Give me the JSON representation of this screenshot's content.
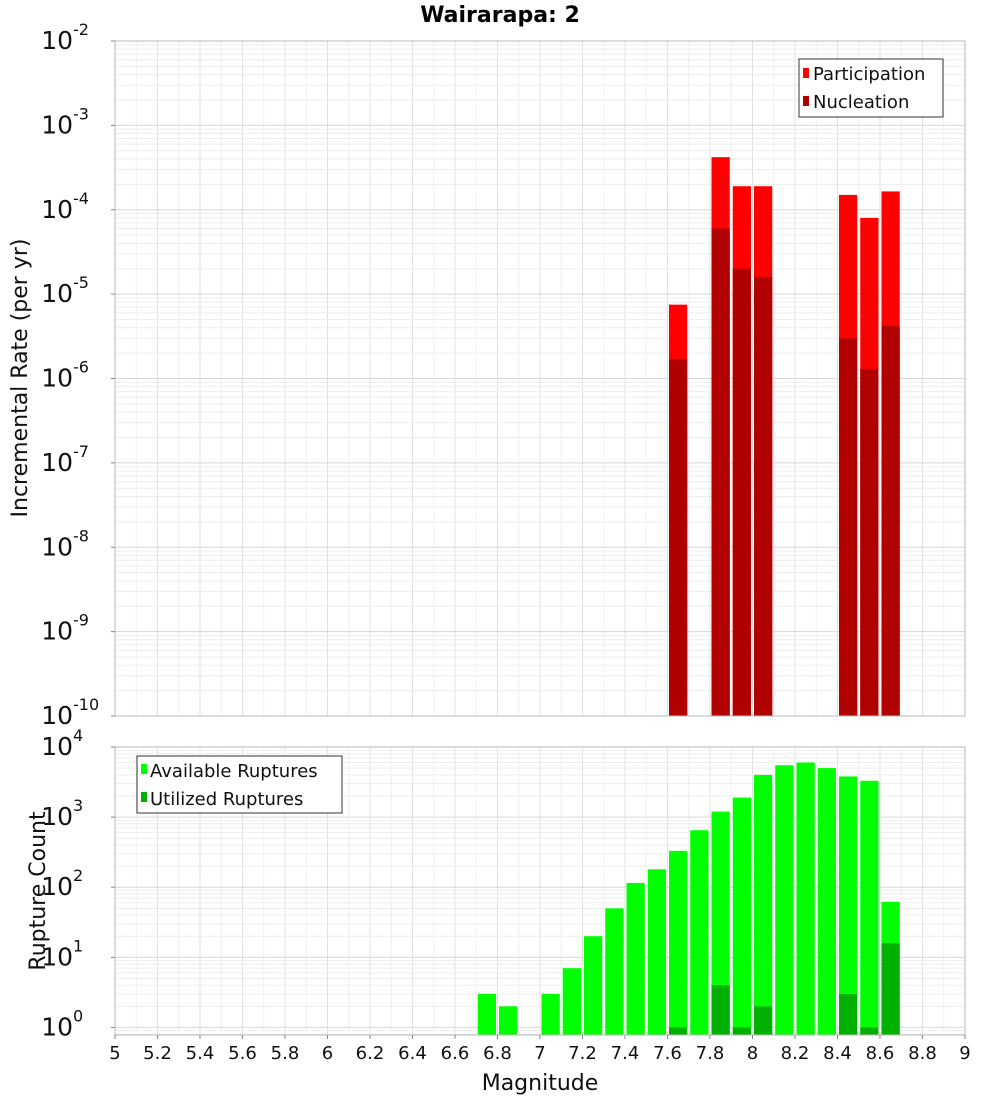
{
  "chart_data": [
    {
      "type": "bar",
      "title": "Wairarapa: 2",
      "xlabel": "",
      "ylabel": "Incremental Rate (per yr)",
      "yscale": "log",
      "ylim": [
        1e-10,
        0.01
      ],
      "xlim": [
        5,
        9
      ],
      "bin_width": 0.1,
      "x": [
        7.65,
        7.85,
        7.95,
        8.05,
        8.45,
        8.55,
        8.65
      ],
      "series": [
        {
          "name": "Participation",
          "color": "#ff0000",
          "values": [
            7.5e-06,
            0.00042,
            0.00019,
            0.00019,
            0.00015,
            8e-05,
            0.000165
          ]
        },
        {
          "name": "Nucleation",
          "color": "#b00000",
          "values": [
            1.7e-06,
            6e-05,
            2e-05,
            1.6e-05,
            3e-06,
            1.3e-06,
            4.2e-06
          ]
        }
      ],
      "y_tick_labels": [
        {
          "base": "10",
          "exp": "-2",
          "value": 0.01
        },
        {
          "base": "10",
          "exp": "-3",
          "value": 0.001
        },
        {
          "base": "10",
          "exp": "-4",
          "value": 0.0001
        },
        {
          "base": "10",
          "exp": "-5",
          "value": 1e-05
        },
        {
          "base": "10",
          "exp": "-6",
          "value": 1e-06
        },
        {
          "base": "10",
          "exp": "-7",
          "value": 1e-07
        },
        {
          "base": "10",
          "exp": "-8",
          "value": 1e-08
        },
        {
          "base": "10",
          "exp": "-9",
          "value": 1e-09
        },
        {
          "base": "10",
          "exp": "-10",
          "value": 1e-10
        }
      ],
      "legend": [
        "Participation",
        "Nucleation"
      ],
      "legend_position": "top-right",
      "grid": true
    },
    {
      "type": "bar",
      "title": "",
      "xlabel": "Magnitude",
      "ylabel": "Rupture Count",
      "yscale": "log",
      "ylim": [
        0.78,
        10000
      ],
      "xlim": [
        5,
        9
      ],
      "bin_width": 0.1,
      "x": [
        6.75,
        6.85,
        6.95,
        7.05,
        7.15,
        7.25,
        7.35,
        7.45,
        7.55,
        7.65,
        7.75,
        7.85,
        7.95,
        8.05,
        8.15,
        8.25,
        8.35,
        8.45,
        8.55,
        8.65
      ],
      "series": [
        {
          "name": "Available Ruptures",
          "color": "#00ff00",
          "values": [
            3,
            2,
            null,
            3,
            7,
            20,
            50,
            115,
            180,
            330,
            650,
            1200,
            1900,
            4000,
            5500,
            6000,
            5000,
            3800,
            3300,
            62
          ]
        },
        {
          "name": "Utilized Ruptures",
          "color": "#00b000",
          "values": [
            null,
            null,
            null,
            null,
            null,
            null,
            null,
            null,
            null,
            1,
            null,
            4,
            1,
            2,
            null,
            null,
            null,
            3,
            1,
            16
          ]
        }
      ],
      "y_tick_labels": [
        {
          "base": "10",
          "exp": "4",
          "value": 10000
        },
        {
          "base": "10",
          "exp": "3",
          "value": 1000
        },
        {
          "base": "10",
          "exp": "2",
          "value": 100
        },
        {
          "base": "10",
          "exp": "1",
          "value": 10
        },
        {
          "base": "10",
          "exp": "0",
          "value": 1
        }
      ],
      "x_tick_labels": [
        "5",
        "5.2",
        "5.4",
        "5.6",
        "5.8",
        "6",
        "6.2",
        "6.4",
        "6.6",
        "6.8",
        "7",
        "7.2",
        "7.4",
        "7.6",
        "7.8",
        "8",
        "8.2",
        "8.4",
        "8.6",
        "8.8",
        "9"
      ],
      "legend": [
        "Available Ruptures",
        "Utilized Ruptures"
      ],
      "legend_position": "top-left",
      "grid": true
    }
  ]
}
